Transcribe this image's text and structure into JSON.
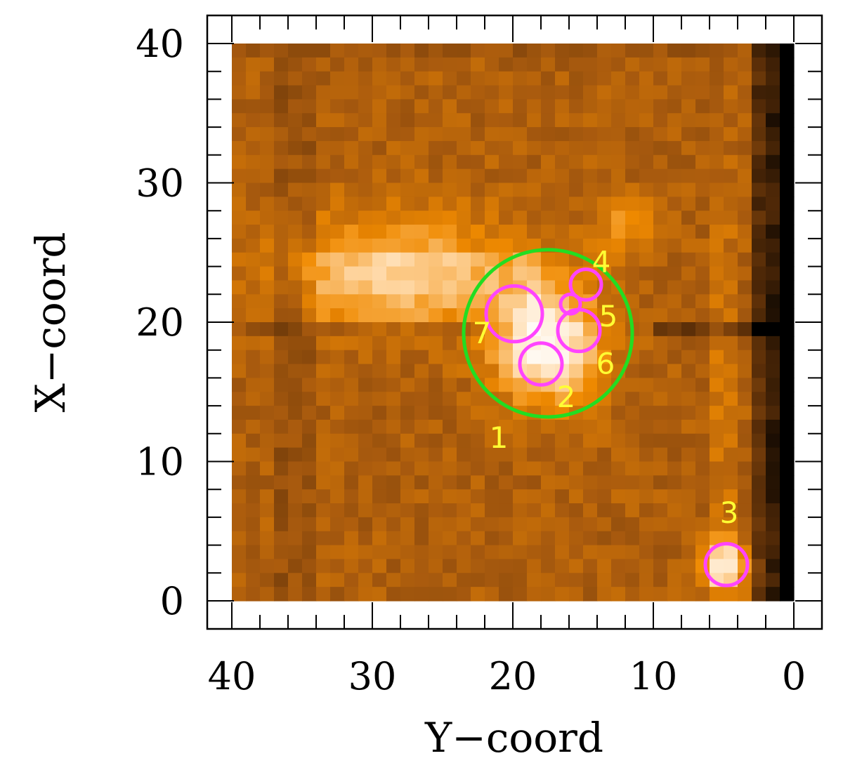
{
  "chart_data": {
    "type": "heatmap",
    "title": "",
    "xlabel": "Y−coord",
    "ylabel": "X−coord",
    "xlim": [
      40,
      0
    ],
    "ylim": [
      0,
      40
    ],
    "x_ticks": [
      40,
      30,
      20,
      10,
      0
    ],
    "y_ticks": [
      0,
      10,
      20,
      30,
      40
    ],
    "x_tick_labels": [
      "40",
      "30",
      "20",
      "10",
      "0"
    ],
    "y_tick_labels": [
      "0",
      "10",
      "20",
      "30",
      "40"
    ],
    "grid": false,
    "colormap": [
      "#000000",
      "#5a2e08",
      "#a85a0e",
      "#f08a00",
      "#ffd9a8",
      "#ffffff"
    ],
    "image_regions": [
      {
        "name": "upper-left-bright",
        "x": 28,
        "y": 24,
        "sx": 6,
        "sy": 3,
        "amp": 0.28
      },
      {
        "name": "central-source",
        "x": 17.5,
        "y": 18.5,
        "sx": 2.6,
        "sy": 3,
        "amp": 0.55
      },
      {
        "name": "mid-bright-blob",
        "x": 12,
        "y": 27,
        "sx": 1.5,
        "sy": 1.5,
        "amp": 0.18
      },
      {
        "name": "source-3-glow",
        "x": 5,
        "y": 2.5,
        "sx": 1.2,
        "sy": 1.2,
        "amp": 0.5
      },
      {
        "name": "vertical-bright-strip",
        "x": 5,
        "y": 15,
        "sx": 0.6,
        "sy": 12,
        "amp": 0.12
      }
    ],
    "annotations": {
      "big_circle": {
        "x": 17.5,
        "y": 19.2,
        "r": 6,
        "color": "#22dd22"
      },
      "sources": [
        {
          "id": "1",
          "label": "1",
          "label_x": 21,
          "label_y": 11.8,
          "color": "#ffff33"
        },
        {
          "id": "2",
          "label": "2",
          "x": 18,
          "y": 17,
          "r": 1.5,
          "label_x": 16.2,
          "label_y": 14.7,
          "color": "#ff44ff"
        },
        {
          "id": "3",
          "label": "3",
          "x": 4.8,
          "y": 2.6,
          "r": 1.5,
          "label_x": 4.6,
          "label_y": 6.4,
          "color": "#ff44ff"
        },
        {
          "id": "4",
          "label": "4",
          "x": 14.8,
          "y": 22.7,
          "r": 1.1,
          "label_x": 13.7,
          "label_y": 24.4,
          "color": "#ff44ff"
        },
        {
          "id": "5",
          "label": "5",
          "x": 15.9,
          "y": 21.3,
          "r": 0.7,
          "label_x": 13.2,
          "label_y": 20.5,
          "color": "#ff44ff"
        },
        {
          "id": "6",
          "label": "6",
          "x": 15.3,
          "y": 19.4,
          "r": 1.5,
          "label_x": 13.4,
          "label_y": 17.1,
          "color": "#ff44ff"
        },
        {
          "id": "7",
          "label": "7",
          "x": 19.9,
          "y": 20.6,
          "r": 2,
          "label_x": 22.2,
          "label_y": 19.3,
          "color": "#ff44ff"
        }
      ],
      "label_color": "#ffff33",
      "circle_color": "#ff44ff"
    }
  }
}
